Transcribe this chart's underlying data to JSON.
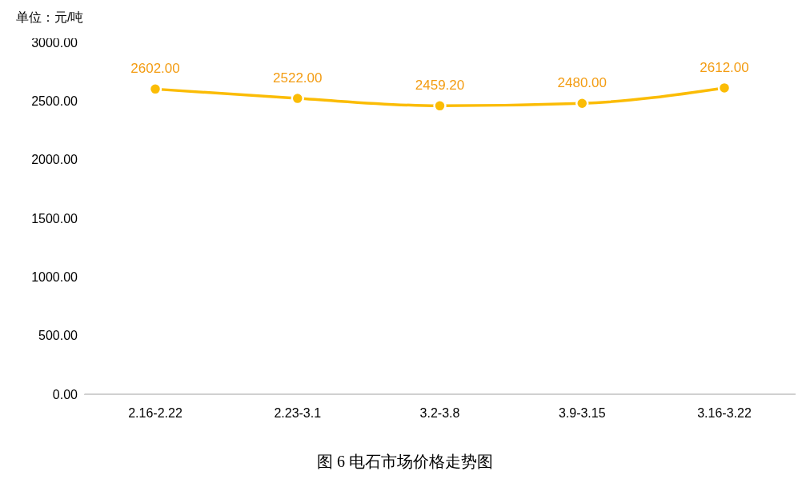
{
  "chart_data": {
    "type": "line",
    "title": "图 6  电石市场价格走势图",
    "ylabel": "单位：元/吨",
    "categories": [
      "2.16-2.22",
      "2.23-3.1",
      "3.2-3.8",
      "3.9-3.15",
      "3.16-3.22"
    ],
    "series": [
      {
        "color": "#fbbc05",
        "values": [
          2602,
          2522,
          2459.2,
          2480,
          2612
        ],
        "value_labels": [
          "2602.00",
          "2522.00",
          "2459.20",
          "2480.00",
          "2612.00"
        ]
      }
    ],
    "ylim": [
      0,
      3000
    ],
    "yticks": [
      {
        "value": 0,
        "label": "0.00"
      },
      {
        "value": 500,
        "label": "500.00"
      },
      {
        "value": 1000,
        "label": "1000.00"
      },
      {
        "value": 1500,
        "label": "1500.00"
      },
      {
        "value": 2000,
        "label": "2000.00"
      },
      {
        "value": 2500,
        "label": "2500.00"
      },
      {
        "value": 3000,
        "label": "3000.00"
      }
    ],
    "grid": false,
    "legend": false,
    "marker": "circle",
    "line_style": "solid"
  }
}
